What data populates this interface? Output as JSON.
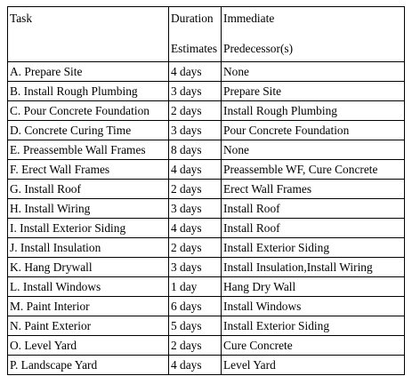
{
  "table": {
    "headers": {
      "task": "Task",
      "duration_line1": "Duration",
      "duration_line2": "Estimates",
      "predecessor_line1": "Immediate",
      "predecessor_line2": "Predecessor(s)"
    },
    "rows": [
      {
        "task": "A. Prepare Site",
        "duration": "4 days",
        "predecessor": "None"
      },
      {
        "task": "B. Install Rough Plumbing",
        "duration": "3 days",
        "predecessor": "Prepare Site"
      },
      {
        "task": "C. Pour Concrete Foundation",
        "duration": "2 days",
        "predecessor": "Install Rough Plumbing"
      },
      {
        "task": "D. Concrete Curing Time",
        "duration": "3 days",
        "predecessor": "Pour Concrete Foundation"
      },
      {
        "task": "E. Preassemble Wall Frames",
        "duration": "8 days",
        "predecessor": "None"
      },
      {
        "task": "F. Erect Wall Frames",
        "duration": "4 days",
        "predecessor": "Preassemble WF, Cure Concrete"
      },
      {
        "task": "G. Install Roof",
        "duration": "2 days",
        "predecessor": "Erect Wall Frames"
      },
      {
        "task": "H. Install Wiring",
        "duration": "3 days",
        "predecessor": "Install Roof"
      },
      {
        "task": "I. Install Exterior Siding",
        "duration": "4 days",
        "predecessor": "Install Roof"
      },
      {
        "task": "J. Install Insulation",
        "duration": "2 days",
        "predecessor": "Install Exterior Siding"
      },
      {
        "task": "K. Hang Drywall",
        "duration": "3 days",
        "predecessor": "Install Insulation,Install Wiring"
      },
      {
        "task": "L. Install Windows",
        "duration": "1 day",
        "predecessor": "Hang Dry Wall"
      },
      {
        "task": "M. Paint Interior",
        "duration": "6 days",
        "predecessor": "Install Windows"
      },
      {
        "task": "N. Paint Exterior",
        "duration": "5 days",
        "predecessor": "Install Exterior Siding"
      },
      {
        "task": "O. Level Yard",
        "duration": "2 days",
        "predecessor": "Cure Concrete"
      },
      {
        "task": "P. Landscape Yard",
        "duration": "4 days",
        "predecessor": "Level Yard"
      }
    ]
  }
}
